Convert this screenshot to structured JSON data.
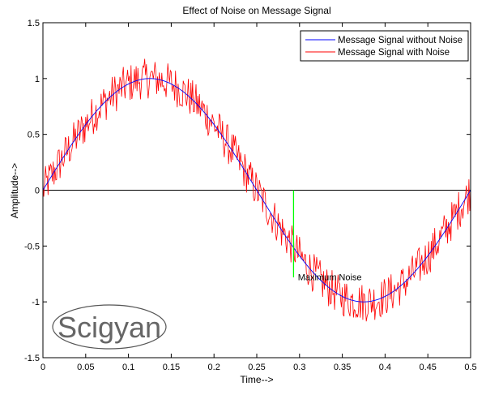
{
  "chart_data": {
    "type": "line",
    "title": "Effect of Noise on Message Signal",
    "xlabel": "Time-->",
    "ylabel": "Amplitude-->",
    "xlim": [
      0,
      0.5
    ],
    "ylim": [
      -1.5,
      1.5
    ],
    "xticks": [
      "0",
      "0.05",
      "0.1",
      "0.15",
      "0.2",
      "0.25",
      "0.3",
      "0.35",
      "0.4",
      "0.45",
      "0.5"
    ],
    "yticks": [
      "-1.5",
      "-1",
      "-0.5",
      "0",
      "0.5",
      "1",
      "1.5"
    ],
    "grid": false,
    "legend_position": "top-right",
    "series": [
      {
        "name": "Message Signal without Noise",
        "color": "#0000ff",
        "function": "sin(2*pi*2*t)",
        "frequency_hz": 2,
        "amplitude": 1
      },
      {
        "name": "Message Signal with Noise",
        "color": "#ff0000",
        "noise_amplitude": 0.2
      }
    ],
    "zero_line_color": "#000000",
    "annotation": {
      "text": "Maximum Noise",
      "x": 0.298,
      "y": -0.8
    },
    "marker_line": {
      "x": 0.293,
      "y_from": 0,
      "y_to": -0.78,
      "color": "#00ff00"
    }
  },
  "watermark": {
    "text": "Scigyan"
  }
}
